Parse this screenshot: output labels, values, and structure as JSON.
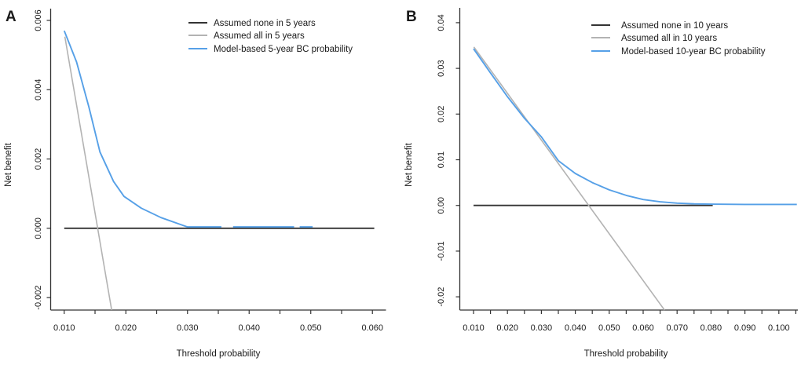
{
  "figure": {
    "background": "#ffffff",
    "text_color": "#1a1a1a"
  },
  "chart_data": [
    {
      "type": "line",
      "panel_label": "A",
      "xlabel": "Threshold probability",
      "ylabel": "Net benefit",
      "xlim": [
        0.0078,
        0.0622
      ],
      "ylim": [
        -0.00236,
        0.00634
      ],
      "grid": false,
      "legend_position": "top-right-inside-no-box",
      "x_ticks": [
        {
          "v": 0.01,
          "label": "0.010"
        },
        {
          "v": 0.015,
          "label": ""
        },
        {
          "v": 0.02,
          "label": "0.020"
        },
        {
          "v": 0.025,
          "label": ""
        },
        {
          "v": 0.03,
          "label": "0.030"
        },
        {
          "v": 0.035,
          "label": ""
        },
        {
          "v": 0.04,
          "label": "0.040"
        },
        {
          "v": 0.045,
          "label": ""
        },
        {
          "v": 0.05,
          "label": "0.050"
        },
        {
          "v": 0.055,
          "label": ""
        },
        {
          "v": 0.06,
          "label": "0.060"
        }
      ],
      "y_ticks": [
        {
          "v": -0.002,
          "label": "-0.002"
        },
        {
          "v": 0.0,
          "label": "0.000"
        },
        {
          "v": 0.002,
          "label": "0.002"
        },
        {
          "v": 0.004,
          "label": "0.004"
        },
        {
          "v": 0.006,
          "label": "0.006"
        }
      ],
      "legend": [
        {
          "label": "Assumed none in 5 years",
          "color": "#333333"
        },
        {
          "label": "Assumed all in 5 years",
          "color": "#b3b3b3"
        },
        {
          "label": "Model-based 5-year BC probability",
          "color": "#56a0e7"
        }
      ],
      "series": [
        {
          "name": "Assumed none in 5 years",
          "color": "#333333",
          "width": 1.9,
          "paths": [
            [
              [
                0.01,
                0
              ],
              [
                0.0603,
                0
              ]
            ]
          ]
        },
        {
          "name": "Assumed all in 5 years",
          "color": "#b3b3b3",
          "width": 1.6,
          "paths": [
            [
              [
                0.0101,
                0.00553
              ],
              [
                0.0177,
                -0.00236
              ]
            ]
          ]
        },
        {
          "name": "Model-based 5-year BC probability",
          "color": "#56a0e7",
          "width": 1.9,
          "paths": [
            [
              [
                0.01,
                0.0057
              ],
              [
                0.012,
                0.0048
              ],
              [
                0.014,
                0.0035
              ],
              [
                0.0158,
                0.0022
              ],
              [
                0.018,
                0.00135
              ],
              [
                0.0197,
                0.00092
              ],
              [
                0.0225,
                0.00058
              ],
              [
                0.0257,
                0.00031
              ],
              [
                0.029,
                0.0001
              ],
              [
                0.03,
                4e-05
              ],
              [
                0.0355,
                4e-05
              ]
            ],
            [
              [
                0.0374,
                4e-05
              ],
              [
                0.0473,
                4e-05
              ]
            ],
            [
              [
                0.0482,
                4e-05
              ],
              [
                0.0503,
                4e-05
              ]
            ]
          ]
        }
      ]
    },
    {
      "type": "line",
      "panel_label": "B",
      "xlabel": "Threshold probability",
      "ylabel": "Net benefit",
      "xlim": [
        0.00595,
        0.1056
      ],
      "ylim": [
        -0.0229,
        0.04325
      ],
      "grid": false,
      "legend_position": "top-right-inside-no-box",
      "x_ticks": [
        {
          "v": 0.01,
          "label": "0.010"
        },
        {
          "v": 0.015,
          "label": ""
        },
        {
          "v": 0.02,
          "label": "0.020"
        },
        {
          "v": 0.025,
          "label": ""
        },
        {
          "v": 0.03,
          "label": "0.030"
        },
        {
          "v": 0.035,
          "label": ""
        },
        {
          "v": 0.04,
          "label": "0.040"
        },
        {
          "v": 0.045,
          "label": ""
        },
        {
          "v": 0.05,
          "label": "0.050"
        },
        {
          "v": 0.055,
          "label": ""
        },
        {
          "v": 0.06,
          "label": "0.060"
        },
        {
          "v": 0.065,
          "label": ""
        },
        {
          "v": 0.07,
          "label": "0.070"
        },
        {
          "v": 0.075,
          "label": ""
        },
        {
          "v": 0.08,
          "label": "0.080"
        },
        {
          "v": 0.085,
          "label": ""
        },
        {
          "v": 0.09,
          "label": "0.090"
        },
        {
          "v": 0.095,
          "label": ""
        },
        {
          "v": 0.1,
          "label": "0.100"
        },
        {
          "v": 0.105,
          "label": ""
        }
      ],
      "y_ticks": [
        {
          "v": -0.02,
          "label": "-0.02"
        },
        {
          "v": -0.01,
          "label": "-0.01"
        },
        {
          "v": 0.0,
          "label": "0.00"
        },
        {
          "v": 0.01,
          "label": "0.01"
        },
        {
          "v": 0.02,
          "label": "0.02"
        },
        {
          "v": 0.03,
          "label": "0.03"
        },
        {
          "v": 0.04,
          "label": "0.04"
        }
      ],
      "legend": [
        {
          "label": "Assumed none in 10 years",
          "color": "#333333"
        },
        {
          "label": "Assumed all in 10 years",
          "color": "#b3b3b3"
        },
        {
          "label": "Model-based 10-year BC probability",
          "color": "#56a0e7"
        }
      ],
      "series": [
        {
          "name": "Assumed none in 10 years",
          "color": "#333333",
          "width": 1.9,
          "paths": [
            [
              [
                0.01,
                0
              ],
              [
                0.0805,
                0
              ]
            ]
          ]
        },
        {
          "name": "Assumed all in 10 years",
          "color": "#b3b3b3",
          "width": 1.6,
          "paths": [
            [
              [
                0.0101,
                0.0347
              ],
              [
                0.0663,
                -0.0229
              ]
            ]
          ]
        },
        {
          "name": "Model-based 10-year BC probability",
          "color": "#56a0e7",
          "width": 1.9,
          "paths": [
            [
              [
                0.01,
                0.0343
              ],
              [
                0.015,
                0.029
              ],
              [
                0.02,
                0.0238
              ],
              [
                0.025,
                0.0191
              ],
              [
                0.03,
                0.015
              ],
              [
                0.035,
                0.0098
              ],
              [
                0.04,
                0.007
              ],
              [
                0.045,
                0.005
              ],
              [
                0.05,
                0.0034
              ],
              [
                0.055,
                0.0022
              ],
              [
                0.06,
                0.0013
              ],
              [
                0.065,
                0.0008
              ],
              [
                0.07,
                0.0005
              ],
              [
                0.075,
                0.00035
              ],
              [
                0.08,
                0.00028
              ],
              [
                0.09,
                0.00022
              ],
              [
                0.1053,
                0.00022
              ]
            ]
          ]
        }
      ]
    }
  ]
}
